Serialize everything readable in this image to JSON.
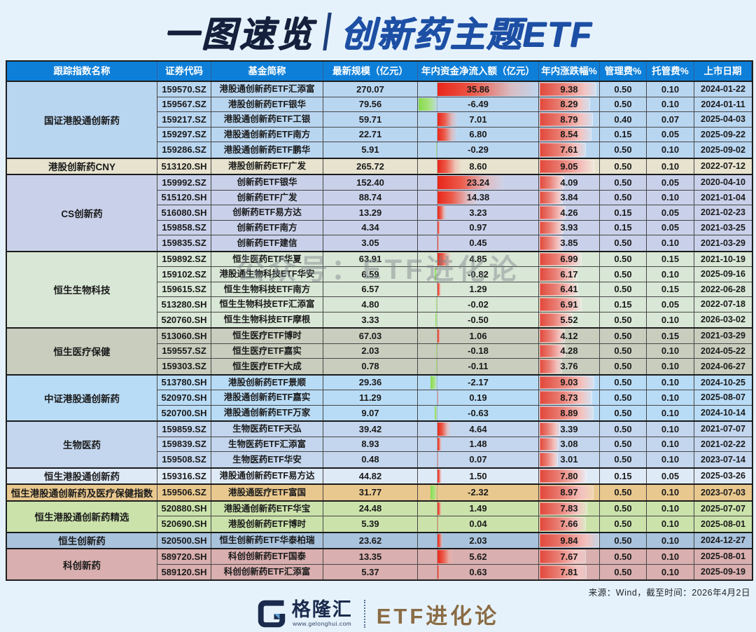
{
  "title": {
    "left": "一图速览",
    "right": "创新药主题ETF"
  },
  "watermark": "公众号：ETF进化论",
  "footer": {
    "source": "来源：Wind，截至时间：2026年4月2日",
    "logo_name": "格隆汇",
    "logo_url": "www.gelonghui.com",
    "brand": "ETF进化论"
  },
  "colors": {
    "header_bg": "#0e7fd9",
    "page_bg": "#e6f2fb",
    "bar_red": "#e8261a",
    "bar_green": "#85d94d",
    "title_dark": "#14203c",
    "title_blue": "#1d4fa4",
    "brand_bronze": "#8a6c45"
  },
  "chart_data": {
    "type": "table",
    "title": "一图速览 | 创新药主题ETF",
    "columns": [
      "跟踪指数名称",
      "证券代码",
      "基金简称",
      "最新规模（亿元）",
      "年内资金净流入额（亿元）",
      "年内涨跌幅%",
      "管理费%",
      "托管费%",
      "上市日期"
    ],
    "bar_notes": {
      "inflow_bar_max": 35.86,
      "change_bar_max": 9.84,
      "positive_color": "red",
      "negative_color": "green"
    },
    "groups": [
      {
        "index_name": "国证港股通创新药",
        "color": "#b9d6f1",
        "rows": [
          {
            "code": "159570.SZ",
            "fund": "港股通创新药ETF汇添富",
            "scale": "270.07",
            "inflow": "35.86",
            "change": "9.38",
            "mgmt": "0.50",
            "custody": "0.10",
            "date": "2024-01-22"
          },
          {
            "code": "159567.SZ",
            "fund": "港股创新药ETF银华",
            "scale": "79.56",
            "inflow": "-6.49",
            "change": "8.29",
            "mgmt": "0.50",
            "custody": "0.10",
            "date": "2024-01-11"
          },
          {
            "code": "159217.SZ",
            "fund": "港股通创新药ETF工银",
            "scale": "59.71",
            "inflow": "7.01",
            "change": "8.79",
            "mgmt": "0.40",
            "custody": "0.07",
            "date": "2025-04-03"
          },
          {
            "code": "159297.SZ",
            "fund": "港股通创新药ETF南方",
            "scale": "22.71",
            "inflow": "6.80",
            "change": "8.54",
            "mgmt": "0.15",
            "custody": "0.05",
            "date": "2025-09-22"
          },
          {
            "code": "159286.SZ",
            "fund": "港股通创新药ETF鹏华",
            "scale": "5.91",
            "inflow": "-0.29",
            "change": "7.61",
            "mgmt": "0.50",
            "custody": "0.10",
            "date": "2025-09-02"
          }
        ]
      },
      {
        "index_name": "港股创新药CNY",
        "color": "#e7e3cf",
        "rows": [
          {
            "code": "513120.SH",
            "fund": "港股创新药ETF广发",
            "scale": "265.72",
            "inflow": "8.60",
            "change": "9.05",
            "mgmt": "0.50",
            "custody": "0.10",
            "date": "2022-07-12"
          }
        ]
      },
      {
        "index_name": "CS创新药",
        "color": "#c9d1ea",
        "rows": [
          {
            "code": "159992.SZ",
            "fund": "创新药ETF银华",
            "scale": "152.40",
            "inflow": "23.24",
            "change": "4.09",
            "mgmt": "0.50",
            "custody": "0.05",
            "date": "2020-04-10"
          },
          {
            "code": "515120.SH",
            "fund": "创新药ETF广发",
            "scale": "88.74",
            "inflow": "14.38",
            "change": "3.84",
            "mgmt": "0.50",
            "custody": "0.10",
            "date": "2021-01-04"
          },
          {
            "code": "516080.SH",
            "fund": "创新药ETF易方达",
            "scale": "13.29",
            "inflow": "3.23",
            "change": "4.26",
            "mgmt": "0.15",
            "custody": "0.05",
            "date": "2021-02-23"
          },
          {
            "code": "159858.SZ",
            "fund": "创新药ETF南方",
            "scale": "4.34",
            "inflow": "0.97",
            "change": "3.93",
            "mgmt": "0.15",
            "custody": "0.05",
            "date": "2021-03-25"
          },
          {
            "code": "159835.SZ",
            "fund": "创新药ETF建信",
            "scale": "3.05",
            "inflow": "0.45",
            "change": "3.85",
            "mgmt": "0.50",
            "custody": "0.10",
            "date": "2021-03-29"
          }
        ]
      },
      {
        "index_name": "恒生生物科技",
        "color": "#d9e7d6",
        "rows": [
          {
            "code": "159892.SZ",
            "fund": "恒生医药ETF华夏",
            "scale": "63.91",
            "inflow": "4.85",
            "change": "6.99",
            "mgmt": "0.50",
            "custody": "0.15",
            "date": "2021-10-19"
          },
          {
            "code": "159102.SZ",
            "fund": "港股通生物科技ETF华安",
            "scale": "6.59",
            "inflow": "-0.82",
            "change": "6.17",
            "mgmt": "0.50",
            "custody": "0.10",
            "date": "2025-09-16"
          },
          {
            "code": "159615.SZ",
            "fund": "恒生生物科技ETF南方",
            "scale": "6.57",
            "inflow": "1.29",
            "change": "6.41",
            "mgmt": "0.50",
            "custody": "0.15",
            "date": "2022-06-28"
          },
          {
            "code": "513280.SH",
            "fund": "恒生生物科技ETF汇添富",
            "scale": "4.80",
            "inflow": "-0.02",
            "change": "6.91",
            "mgmt": "0.15",
            "custody": "0.05",
            "date": "2022-07-18"
          },
          {
            "code": "520760.SH",
            "fund": "恒生生物科技ETF摩根",
            "scale": "3.33",
            "inflow": "-0.50",
            "change": "5.52",
            "mgmt": "0.50",
            "custody": "0.10",
            "date": "2026-03-02"
          }
        ]
      },
      {
        "index_name": "恒生医疗保健",
        "color": "#c9cdbe",
        "rows": [
          {
            "code": "513060.SH",
            "fund": "恒生医疗ETF博时",
            "scale": "67.03",
            "inflow": "1.06",
            "change": "4.12",
            "mgmt": "0.50",
            "custody": "0.15",
            "date": "2021-03-29"
          },
          {
            "code": "159557.SZ",
            "fund": "恒生医疗ETF嘉实",
            "scale": "2.03",
            "inflow": "-0.18",
            "change": "4.28",
            "mgmt": "0.50",
            "custody": "0.10",
            "date": "2024-05-22"
          },
          {
            "code": "159303.SZ",
            "fund": "恒生医疗ETF大成",
            "scale": "0.78",
            "inflow": "-0.11",
            "change": "3.76",
            "mgmt": "0.50",
            "custody": "0.10",
            "date": "2024-06-27"
          }
        ]
      },
      {
        "index_name": "中证港股通创新药",
        "color": "#b9dcf6",
        "rows": [
          {
            "code": "513780.SH",
            "fund": "港股创新药ETF景顺",
            "scale": "29.36",
            "inflow": "-2.17",
            "change": "9.03",
            "mgmt": "0.50",
            "custody": "0.10",
            "date": "2024-10-25"
          },
          {
            "code": "520970.SH",
            "fund": "港股通创新药ETF嘉实",
            "scale": "11.29",
            "inflow": "0.19",
            "change": "8.73",
            "mgmt": "0.50",
            "custody": "0.10",
            "date": "2025-08-07"
          },
          {
            "code": "520700.SH",
            "fund": "港股通创新药ETF万家",
            "scale": "9.07",
            "inflow": "-0.63",
            "change": "8.89",
            "mgmt": "0.50",
            "custody": "0.10",
            "date": "2024-10-14"
          }
        ]
      },
      {
        "index_name": "生物医药",
        "color": "#c4d6ee",
        "rows": [
          {
            "code": "159859.SZ",
            "fund": "生物医药ETF天弘",
            "scale": "39.42",
            "inflow": "4.64",
            "change": "3.39",
            "mgmt": "0.50",
            "custody": "0.10",
            "date": "2021-07-07"
          },
          {
            "code": "159839.SZ",
            "fund": "生物医药ETF汇添富",
            "scale": "8.93",
            "inflow": "1.48",
            "change": "3.08",
            "mgmt": "0.50",
            "custody": "0.10",
            "date": "2021-02-22"
          },
          {
            "code": "159508.SZ",
            "fund": "生物医药ETF华安",
            "scale": "0.48",
            "inflow": "0.07",
            "change": "3.01",
            "mgmt": "0.50",
            "custody": "0.10",
            "date": "2023-07-14"
          }
        ]
      },
      {
        "index_name": "恒生港股通创新药",
        "color": "#dfeaf7",
        "rows": [
          {
            "code": "159316.SZ",
            "fund": "港股通创新药ETF易方达",
            "scale": "44.82",
            "inflow": "1.50",
            "change": "7.80",
            "mgmt": "0.15",
            "custody": "0.05",
            "date": "2025-03-26"
          }
        ]
      },
      {
        "index_name": "恒生港股通创新药及医疗保健指数",
        "color": "#e9c88f",
        "rows": [
          {
            "code": "159506.SZ",
            "fund": "港股通医疗ETF富国",
            "scale": "31.77",
            "inflow": "-2.32",
            "change": "8.97",
            "mgmt": "0.50",
            "custody": "0.10",
            "date": "2023-07-03"
          }
        ]
      },
      {
        "index_name": "恒生港股通创新药精选",
        "color": "#cbe3ab",
        "rows": [
          {
            "code": "520880.SH",
            "fund": "港股通创新药ETF华宝",
            "scale": "24.48",
            "inflow": "1.49",
            "change": "7.83",
            "mgmt": "0.50",
            "custody": "0.10",
            "date": "2025-07-07"
          },
          {
            "code": "520690.SH",
            "fund": "港股创新药ETF博时",
            "scale": "5.39",
            "inflow": "0.04",
            "change": "7.66",
            "mgmt": "0.50",
            "custody": "0.10",
            "date": "2025-08-01"
          }
        ]
      },
      {
        "index_name": "恒生创新药",
        "color": "#a9c3dd",
        "rows": [
          {
            "code": "520500.SH",
            "fund": "恒生创新药ETF华泰柏瑞",
            "scale": "23.62",
            "inflow": "2.03",
            "change": "9.84",
            "mgmt": "0.50",
            "custody": "0.10",
            "date": "2024-12-27"
          }
        ]
      },
      {
        "index_name": "科创新药",
        "color": "#d9afaf",
        "rows": [
          {
            "code": "589720.SH",
            "fund": "科创创新药ETF国泰",
            "scale": "13.35",
            "inflow": "5.62",
            "change": "7.67",
            "mgmt": "0.50",
            "custody": "0.10",
            "date": "2025-08-01"
          },
          {
            "code": "589120.SH",
            "fund": "科创创新药ETF汇添富",
            "scale": "5.37",
            "inflow": "0.63",
            "change": "7.81",
            "mgmt": "0.50",
            "custody": "0.10",
            "date": "2025-09-19"
          }
        ]
      }
    ]
  }
}
